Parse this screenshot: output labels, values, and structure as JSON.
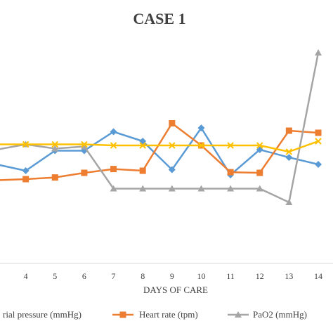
{
  "chart_data": {
    "type": "line",
    "title": "CASE 1",
    "xlabel": "DAYS OF CARE",
    "ylabel": "",
    "x": [
      3,
      4,
      5,
      6,
      7,
      8,
      9,
      10,
      11,
      12,
      13,
      14
    ],
    "x_tick_labels": [
      "4",
      "5",
      "6",
      "7",
      "8",
      "9",
      "10",
      "11",
      "12",
      "13",
      "14"
    ],
    "xlim": [
      3,
      14.6
    ],
    "ylim": [
      0,
      1
    ],
    "grid": false,
    "legend_position": "bottom",
    "y_scale_note": "relative",
    "series": [
      {
        "name": "Mean arterial pressure (mmHg)",
        "legend_visible_text": "rial pressure (mmHg)",
        "color": "#5B9BD5",
        "marker": "diamond",
        "values": [
          0.47,
          0.44,
          0.535,
          0.535,
          0.625,
          0.58,
          0.445,
          0.643,
          0.42,
          0.54,
          0.503,
          0.47
        ]
      },
      {
        "name": "Heart rate (tpm)",
        "color": "#ED7D31",
        "marker": "square",
        "values": [
          0.395,
          0.4,
          0.408,
          0.43,
          0.448,
          0.44,
          0.665,
          0.56,
          0.433,
          0.43,
          0.63,
          0.62
        ]
      },
      {
        "name": "PaO2 (mmHg)",
        "color": "#A5A5A5",
        "marker": "triangle",
        "values": [
          0.54,
          0.565,
          0.545,
          0.555,
          0.355,
          0.355,
          0.355,
          0.355,
          0.355,
          0.355,
          0.29,
          1.0
        ]
      },
      {
        "name": "",
        "color": "#FFC000",
        "marker": "x",
        "values": [
          0.565,
          0.565,
          0.565,
          0.565,
          0.56,
          0.56,
          0.56,
          0.56,
          0.56,
          0.56,
          0.53,
          0.58
        ]
      }
    ]
  }
}
